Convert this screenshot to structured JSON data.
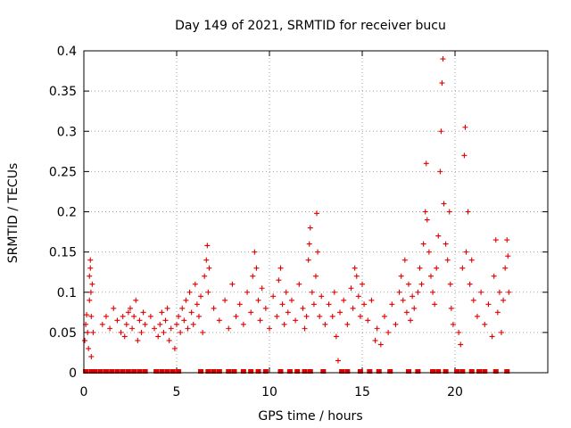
{
  "chart_data": {
    "type": "scatter",
    "title": "Day 149 of 2021, SRMTID for receiver bucu",
    "xlabel": "GPS time / hours",
    "ylabel": "SRMTID / TECUs",
    "xlim": [
      0,
      25
    ],
    "ylim": [
      0,
      0.4
    ],
    "xticks": [
      0,
      5,
      10,
      15,
      20
    ],
    "yticks": [
      0,
      0.05,
      0.1,
      0.15,
      0.2,
      0.25,
      0.3,
      0.35,
      0.4
    ],
    "grid": true,
    "marker": "plus",
    "color": "#e00000",
    "series": [
      {
        "name": "SRMTID",
        "points": [
          [
            0.05,
            0.04
          ],
          [
            0.1,
            0.06
          ],
          [
            0.15,
            0.072
          ],
          [
            0.2,
            0.05
          ],
          [
            0.25,
            0.03
          ],
          [
            0.3,
            0.12
          ],
          [
            0.3,
            0.09
          ],
          [
            0.35,
            0.14
          ],
          [
            0.35,
            0.13
          ],
          [
            0.38,
            0.1
          ],
          [
            0.4,
            0.07
          ],
          [
            0.45,
            0.11
          ],
          [
            0.4,
            0.02
          ],
          [
            0.5,
            0.05
          ],
          [
            1.0,
            0.06
          ],
          [
            1.2,
            0.07
          ],
          [
            1.4,
            0.055
          ],
          [
            1.6,
            0.08
          ],
          [
            1.8,
            0.065
          ],
          [
            2.0,
            0.05
          ],
          [
            2.1,
            0.07
          ],
          [
            2.2,
            0.045
          ],
          [
            2.3,
            0.06
          ],
          [
            2.4,
            0.075
          ],
          [
            2.5,
            0.08
          ],
          [
            2.6,
            0.055
          ],
          [
            2.7,
            0.07
          ],
          [
            2.8,
            0.09
          ],
          [
            2.9,
            0.04
          ],
          [
            3.0,
            0.065
          ],
          [
            3.1,
            0.05
          ],
          [
            3.2,
            0.075
          ],
          [
            3.3,
            0.06
          ],
          [
            3.6,
            0.07
          ],
          [
            3.8,
            0.055
          ],
          [
            4.0,
            0.045
          ],
          [
            4.1,
            0.06
          ],
          [
            4.2,
            0.075
          ],
          [
            4.3,
            0.05
          ],
          [
            4.4,
            0.065
          ],
          [
            4.5,
            0.08
          ],
          [
            4.6,
            0.04
          ],
          [
            4.7,
            0.055
          ],
          [
            4.9,
            0.03
          ],
          [
            5.0,
            0.06
          ],
          [
            5.1,
            0.07
          ],
          [
            5.2,
            0.05
          ],
          [
            5.3,
            0.08
          ],
          [
            5.4,
            0.065
          ],
          [
            5.5,
            0.09
          ],
          [
            5.6,
            0.055
          ],
          [
            5.7,
            0.1
          ],
          [
            5.8,
            0.075
          ],
          [
            5.9,
            0.06
          ],
          [
            6.0,
            0.11
          ],
          [
            6.1,
            0.085
          ],
          [
            6.2,
            0.07
          ],
          [
            6.3,
            0.095
          ],
          [
            6.4,
            0.05
          ],
          [
            6.5,
            0.12
          ],
          [
            6.6,
            0.14
          ],
          [
            6.65,
            0.158
          ],
          [
            6.7,
            0.1
          ],
          [
            6.75,
            0.13
          ],
          [
            7.0,
            0.08
          ],
          [
            7.3,
            0.065
          ],
          [
            7.6,
            0.09
          ],
          [
            7.8,
            0.055
          ],
          [
            8.0,
            0.11
          ],
          [
            8.2,
            0.07
          ],
          [
            8.4,
            0.085
          ],
          [
            8.6,
            0.06
          ],
          [
            8.8,
            0.1
          ],
          [
            9.0,
            0.075
          ],
          [
            9.1,
            0.12
          ],
          [
            9.2,
            0.15
          ],
          [
            9.3,
            0.13
          ],
          [
            9.4,
            0.09
          ],
          [
            9.5,
            0.065
          ],
          [
            9.6,
            0.105
          ],
          [
            9.8,
            0.08
          ],
          [
            10.0,
            0.055
          ],
          [
            10.2,
            0.095
          ],
          [
            10.4,
            0.07
          ],
          [
            10.5,
            0.115
          ],
          [
            10.6,
            0.13
          ],
          [
            10.7,
            0.085
          ],
          [
            10.8,
            0.06
          ],
          [
            10.9,
            0.1
          ],
          [
            11.0,
            0.075
          ],
          [
            11.2,
            0.09
          ],
          [
            11.4,
            0.065
          ],
          [
            11.6,
            0.11
          ],
          [
            11.8,
            0.08
          ],
          [
            11.9,
            0.055
          ],
          [
            12.0,
            0.07
          ],
          [
            12.1,
            0.14
          ],
          [
            12.15,
            0.16
          ],
          [
            12.2,
            0.18
          ],
          [
            12.3,
            0.1
          ],
          [
            12.4,
            0.085
          ],
          [
            12.5,
            0.12
          ],
          [
            12.55,
            0.198
          ],
          [
            12.6,
            0.15
          ],
          [
            12.7,
            0.07
          ],
          [
            12.8,
            0.095
          ],
          [
            13.0,
            0.06
          ],
          [
            13.2,
            0.085
          ],
          [
            13.4,
            0.07
          ],
          [
            13.5,
            0.1
          ],
          [
            13.6,
            0.045
          ],
          [
            13.7,
            0.015
          ],
          [
            13.8,
            0.075
          ],
          [
            14.0,
            0.09
          ],
          [
            14.2,
            0.06
          ],
          [
            14.4,
            0.105
          ],
          [
            14.5,
            0.08
          ],
          [
            14.6,
            0.13
          ],
          [
            14.7,
            0.12
          ],
          [
            14.8,
            0.095
          ],
          [
            14.9,
            0.07
          ],
          [
            15.0,
            0.11
          ],
          [
            15.1,
            0.085
          ],
          [
            15.3,
            0.065
          ],
          [
            15.5,
            0.09
          ],
          [
            15.7,
            0.04
          ],
          [
            15.8,
            0.055
          ],
          [
            16.0,
            0.035
          ],
          [
            16.2,
            0.07
          ],
          [
            16.4,
            0.05
          ],
          [
            16.6,
            0.085
          ],
          [
            16.8,
            0.06
          ],
          [
            17.0,
            0.1
          ],
          [
            17.1,
            0.12
          ],
          [
            17.2,
            0.09
          ],
          [
            17.3,
            0.14
          ],
          [
            17.4,
            0.075
          ],
          [
            17.5,
            0.11
          ],
          [
            17.6,
            0.065
          ],
          [
            17.7,
            0.095
          ],
          [
            17.8,
            0.08
          ],
          [
            18.0,
            0.1
          ],
          [
            18.1,
            0.13
          ],
          [
            18.2,
            0.11
          ],
          [
            18.3,
            0.16
          ],
          [
            18.4,
            0.2
          ],
          [
            18.45,
            0.26
          ],
          [
            18.5,
            0.19
          ],
          [
            18.6,
            0.15
          ],
          [
            18.7,
            0.12
          ],
          [
            18.8,
            0.1
          ],
          [
            18.9,
            0.085
          ],
          [
            19.0,
            0.13
          ],
          [
            19.1,
            0.17
          ],
          [
            19.2,
            0.25
          ],
          [
            19.25,
            0.3
          ],
          [
            19.3,
            0.36
          ],
          [
            19.35,
            0.39
          ],
          [
            19.4,
            0.21
          ],
          [
            19.5,
            0.16
          ],
          [
            19.6,
            0.14
          ],
          [
            19.7,
            0.2
          ],
          [
            19.75,
            0.11
          ],
          [
            19.8,
            0.08
          ],
          [
            19.9,
            0.06
          ],
          [
            20.2,
            0.05
          ],
          [
            20.3,
            0.035
          ],
          [
            20.4,
            0.13
          ],
          [
            20.5,
            0.27
          ],
          [
            20.55,
            0.305
          ],
          [
            20.6,
            0.15
          ],
          [
            20.7,
            0.2
          ],
          [
            20.8,
            0.11
          ],
          [
            20.9,
            0.14
          ],
          [
            21.0,
            0.09
          ],
          [
            21.2,
            0.07
          ],
          [
            21.4,
            0.1
          ],
          [
            21.6,
            0.06
          ],
          [
            21.8,
            0.085
          ],
          [
            22.0,
            0.045
          ],
          [
            22.1,
            0.12
          ],
          [
            22.2,
            0.165
          ],
          [
            22.3,
            0.075
          ],
          [
            22.4,
            0.1
          ],
          [
            22.5,
            0.05
          ],
          [
            22.6,
            0.09
          ],
          [
            22.7,
            0.13
          ],
          [
            22.8,
            0.165
          ],
          [
            22.85,
            0.145
          ],
          [
            22.9,
            0.1
          ]
        ],
        "zero_points": [
          0.1,
          0.4,
          0.6,
          0.9,
          1.2,
          1.5,
          1.8,
          2.1,
          2.4,
          2.7,
          3.0,
          3.3,
          3.9,
          4.2,
          4.5,
          4.8,
          5.1,
          6.3,
          6.7,
          7.0,
          7.3,
          7.8,
          8.1,
          8.6,
          9.0,
          9.4,
          9.8,
          10.6,
          11.1,
          11.5,
          11.9,
          12.2,
          12.9,
          13.9,
          14.2,
          14.9,
          15.4,
          15.9,
          16.5,
          17.5,
          18.0,
          18.8,
          19.1,
          19.5,
          20.1,
          20.4,
          20.9,
          21.3,
          21.6,
          22.2,
          22.8
        ]
      }
    ]
  }
}
